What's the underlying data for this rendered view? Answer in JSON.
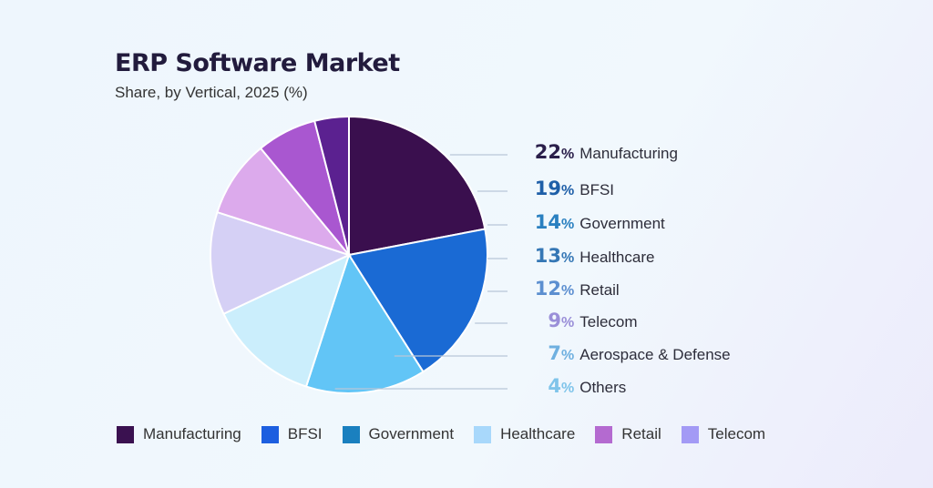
{
  "chart_data": {
    "type": "pie",
    "title": "ERP Software Market",
    "subtitle": "Share, by Vertical, 2025 (%)",
    "unit": "%",
    "slices": [
      {
        "label": "Manufacturing",
        "value": 22,
        "color": "#3a0f4e",
        "text_color": "#2a1f4a"
      },
      {
        "label": "BFSI",
        "value": 19,
        "color": "#1a6ad4",
        "text_color": "#1e5fa8"
      },
      {
        "label": "Government",
        "value": 14,
        "color": "#62c5f6",
        "text_color": "#2a80c0"
      },
      {
        "label": "Healthcare",
        "value": 13,
        "color": "#cbeefc",
        "text_color": "#3577b5"
      },
      {
        "label": "Retail",
        "value": 12,
        "color": "#d5d0f5",
        "text_color": "#5c8fd0"
      },
      {
        "label": "Telecom",
        "value": 9,
        "color": "#dcaaec",
        "text_color": "#9a8fd8"
      },
      {
        "label": "Aerospace & Defense",
        "value": 7,
        "color": "#a957d0",
        "text_color": "#6fb0e0"
      },
      {
        "label": "Others",
        "value": 4,
        "color": "#5b2190",
        "text_color": "#7fc4ea"
      }
    ],
    "legend": [
      {
        "label": "Manufacturing",
        "color": "#3a1150"
      },
      {
        "label": "BFSI",
        "color": "#1d5fe0"
      },
      {
        "label": "Government",
        "color": "#1a80bf"
      },
      {
        "label": "Healthcare",
        "color": "#a8d8fb"
      },
      {
        "label": "Retail",
        "color": "#b46ad0"
      },
      {
        "label": "Telecom",
        "color": "#a39af5"
      }
    ],
    "legend_position": "bottom"
  }
}
